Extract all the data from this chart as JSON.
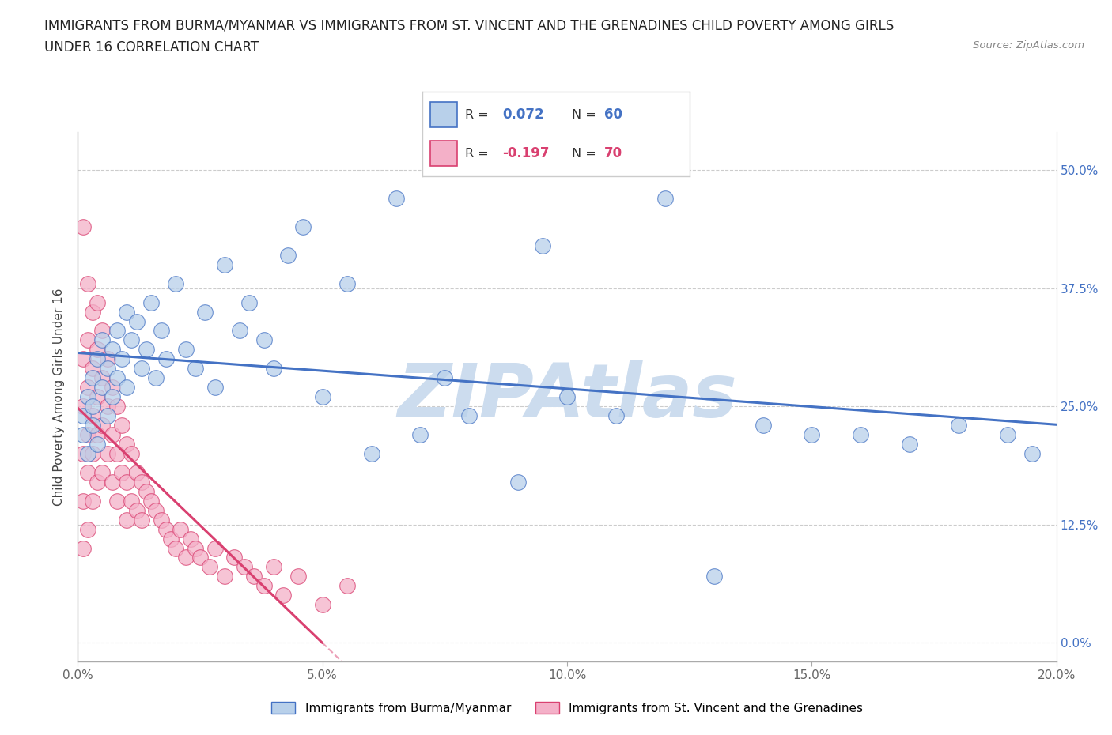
{
  "title_line1": "IMMIGRANTS FROM BURMA/MYANMAR VS IMMIGRANTS FROM ST. VINCENT AND THE GRENADINES CHILD POVERTY AMONG GIRLS",
  "title_line2": "UNDER 16 CORRELATION CHART",
  "source": "Source: ZipAtlas.com",
  "ylabel": "Child Poverty Among Girls Under 16",
  "legend_label1": "Immigrants from Burma/Myanmar",
  "legend_label2": "Immigrants from St. Vincent and the Grenadines",
  "R1": 0.072,
  "N1": 60,
  "R2": -0.197,
  "N2": 70,
  "xlim": [
    0.0,
    0.2
  ],
  "ylim": [
    -0.02,
    0.54
  ],
  "plot_ylim": [
    0.0,
    0.54
  ],
  "yticks": [
    0.0,
    0.125,
    0.25,
    0.375,
    0.5
  ],
  "ytick_labels": [
    "0.0%",
    "12.5%",
    "25.0%",
    "37.5%",
    "50.0%"
  ],
  "xticks": [
    0.0,
    0.05,
    0.1,
    0.15,
    0.2
  ],
  "xtick_labels": [
    "0.0%",
    "5.0%",
    "10.0%",
    "15.0%",
    "20.0%"
  ],
  "color_blue": "#b8d0ea",
  "color_pink": "#f4b0c8",
  "line_blue": "#4472c4",
  "line_pink": "#d94070",
  "watermark": "ZIPAtlas",
  "watermark_color": "#ccdcee",
  "blue_x": [
    0.001,
    0.001,
    0.002,
    0.002,
    0.003,
    0.003,
    0.003,
    0.004,
    0.004,
    0.005,
    0.005,
    0.006,
    0.006,
    0.007,
    0.007,
    0.008,
    0.008,
    0.009,
    0.01,
    0.01,
    0.011,
    0.012,
    0.013,
    0.014,
    0.015,
    0.016,
    0.017,
    0.018,
    0.02,
    0.022,
    0.024,
    0.026,
    0.028,
    0.03,
    0.033,
    0.035,
    0.038,
    0.04,
    0.043,
    0.046,
    0.05,
    0.055,
    0.06,
    0.065,
    0.07,
    0.075,
    0.08,
    0.09,
    0.095,
    0.1,
    0.11,
    0.12,
    0.13,
    0.14,
    0.15,
    0.16,
    0.17,
    0.18,
    0.19,
    0.195
  ],
  "blue_y": [
    0.24,
    0.22,
    0.26,
    0.2,
    0.28,
    0.23,
    0.25,
    0.3,
    0.21,
    0.27,
    0.32,
    0.29,
    0.24,
    0.31,
    0.26,
    0.28,
    0.33,
    0.3,
    0.35,
    0.27,
    0.32,
    0.34,
    0.29,
    0.31,
    0.36,
    0.28,
    0.33,
    0.3,
    0.38,
    0.31,
    0.29,
    0.35,
    0.27,
    0.4,
    0.33,
    0.36,
    0.32,
    0.29,
    0.41,
    0.44,
    0.26,
    0.38,
    0.2,
    0.47,
    0.22,
    0.28,
    0.24,
    0.17,
    0.42,
    0.26,
    0.24,
    0.47,
    0.07,
    0.23,
    0.22,
    0.22,
    0.21,
    0.23,
    0.22,
    0.2
  ],
  "pink_x": [
    0.001,
    0.001,
    0.001,
    0.001,
    0.001,
    0.001,
    0.002,
    0.002,
    0.002,
    0.002,
    0.002,
    0.002,
    0.003,
    0.003,
    0.003,
    0.003,
    0.003,
    0.004,
    0.004,
    0.004,
    0.004,
    0.004,
    0.005,
    0.005,
    0.005,
    0.005,
    0.006,
    0.006,
    0.006,
    0.007,
    0.007,
    0.007,
    0.008,
    0.008,
    0.008,
    0.009,
    0.009,
    0.01,
    0.01,
    0.01,
    0.011,
    0.011,
    0.012,
    0.012,
    0.013,
    0.013,
    0.014,
    0.015,
    0.016,
    0.017,
    0.018,
    0.019,
    0.02,
    0.021,
    0.022,
    0.023,
    0.024,
    0.025,
    0.027,
    0.028,
    0.03,
    0.032,
    0.034,
    0.036,
    0.038,
    0.04,
    0.042,
    0.045,
    0.05,
    0.055
  ],
  "pink_y": [
    0.44,
    0.3,
    0.25,
    0.2,
    0.15,
    0.1,
    0.38,
    0.32,
    0.27,
    0.22,
    0.18,
    0.12,
    0.35,
    0.29,
    0.24,
    0.2,
    0.15,
    0.36,
    0.31,
    0.26,
    0.22,
    0.17,
    0.33,
    0.28,
    0.23,
    0.18,
    0.3,
    0.25,
    0.2,
    0.27,
    0.22,
    0.17,
    0.25,
    0.2,
    0.15,
    0.23,
    0.18,
    0.21,
    0.17,
    0.13,
    0.2,
    0.15,
    0.18,
    0.14,
    0.17,
    0.13,
    0.16,
    0.15,
    0.14,
    0.13,
    0.12,
    0.11,
    0.1,
    0.12,
    0.09,
    0.11,
    0.1,
    0.09,
    0.08,
    0.1,
    0.07,
    0.09,
    0.08,
    0.07,
    0.06,
    0.08,
    0.05,
    0.07,
    0.04,
    0.06
  ]
}
